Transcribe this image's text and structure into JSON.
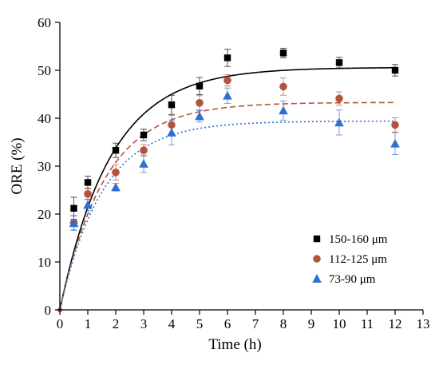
{
  "chart_data": {
    "type": "scatter",
    "title": "",
    "xlabel": "Time (h)",
    "ylabel": "ORE (%)",
    "xlim": [
      0,
      13
    ],
    "ylim": [
      0,
      60
    ],
    "xticks": [
      0,
      1,
      2,
      3,
      4,
      5,
      6,
      7,
      8,
      9,
      10,
      11,
      12,
      13
    ],
    "yticks": [
      0,
      10,
      20,
      30,
      40,
      50,
      60
    ],
    "grid": false,
    "legend_position": "bottom-right",
    "series": [
      {
        "name": "150-160 μm",
        "marker": "square",
        "color": "#000000",
        "fit_style": "solid",
        "fit_color": "#000000",
        "fit_max": 50.6,
        "fit_rate": 0.55,
        "x": [
          0.5,
          1,
          2,
          3,
          4,
          5,
          6,
          8,
          10,
          12
        ],
        "y": [
          21.2,
          26.6,
          33.3,
          36.5,
          42.8,
          46.7,
          52.6,
          53.6,
          51.6,
          50.0
        ],
        "error": [
          2.3,
          1.3,
          1.5,
          1.2,
          2.0,
          1.8,
          1.8,
          1.0,
          1.1,
          1.2
        ]
      },
      {
        "name": "112-125 μm",
        "marker": "circle",
        "color": "#b5533c",
        "fit_style": "dashed",
        "fit_color": "#b5533c",
        "fit_max": 43.3,
        "fit_rate": 0.62,
        "x": [
          0.5,
          1,
          2,
          3,
          4,
          5,
          6,
          8,
          10,
          12
        ],
        "y": [
          18.2,
          24.2,
          28.7,
          33.3,
          38.6,
          43.2,
          47.9,
          46.6,
          44.1,
          38.6
        ],
        "error": [
          1.5,
          1.2,
          1.6,
          1.2,
          2.0,
          1.5,
          1.2,
          1.8,
          1.4,
          1.5
        ]
      },
      {
        "name": "73-90 μm",
        "marker": "triangle",
        "color": "#2f6fcf",
        "fit_style": "dotted",
        "fit_color": "#2f6fcf",
        "fit_max": 39.4,
        "fit_rate": 0.65,
        "x": [
          0.5,
          1,
          2,
          3,
          4,
          5,
          6,
          8,
          10,
          12
        ],
        "y": [
          18.1,
          21.9,
          25.6,
          30.5,
          37.0,
          40.4,
          44.7,
          41.6,
          39.1,
          34.7
        ],
        "error": [
          1.5,
          1.2,
          0.8,
          1.8,
          2.6,
          1.2,
          1.6,
          2.0,
          2.6,
          2.3
        ]
      }
    ]
  }
}
